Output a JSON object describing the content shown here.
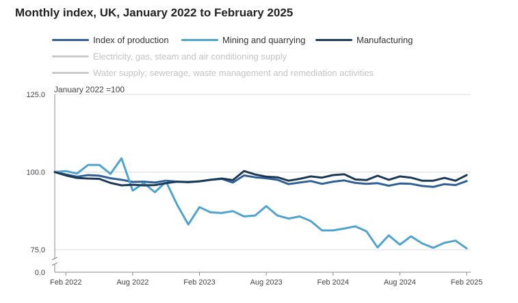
{
  "chart_data": {
    "type": "line",
    "title": "Monthly index, UK, January 2022 to February 2025",
    "ylabel": "January 2022 =100",
    "xlabel": "",
    "ylim": [
      0,
      125
    ],
    "y_ticks": [
      "0.0",
      "75.0",
      "100.0",
      "125.0"
    ],
    "y_tick_values": [
      0,
      75,
      100,
      125
    ],
    "axis_break": true,
    "x_ticks": [
      "Feb 2022",
      "Aug 2022",
      "Feb 2023",
      "Aug 2023",
      "Feb 2024",
      "Aug 2024",
      "Feb 2025"
    ],
    "x_tick_index": [
      1,
      7,
      13,
      19,
      25,
      31,
      37
    ],
    "x_start": "Jan 2022",
    "x_count": 38,
    "series": [
      {
        "name": "Index of production",
        "color": "#2e5f95",
        "active": true,
        "values": [
          100.0,
          99.2,
          98.5,
          99.0,
          98.8,
          98.0,
          97.5,
          96.8,
          96.9,
          96.6,
          97.2,
          96.9,
          96.7,
          97.0,
          97.5,
          97.8,
          96.6,
          98.9,
          98.3,
          98.0,
          97.5,
          96.1,
          96.6,
          97.1,
          96.2,
          96.9,
          97.3,
          96.5,
          96.2,
          96.4,
          95.6,
          96.3,
          96.2,
          95.5,
          95.2,
          96.1,
          95.8,
          97.1
        ]
      },
      {
        "name": "Mining and quarrying",
        "color": "#4fa3cf",
        "active": true,
        "values": [
          100.0,
          100.3,
          99.5,
          102.3,
          102.3,
          99.4,
          104.4,
          94.0,
          96.4,
          93.5,
          96.9,
          89.4,
          83.1,
          88.7,
          87.0,
          86.8,
          87.4,
          85.7,
          86.0,
          89.0,
          86.0,
          85.0,
          85.7,
          84.2,
          81.2,
          81.2,
          81.8,
          82.5,
          80.9,
          75.7,
          79.6,
          76.6,
          79.3,
          77.0,
          75.6,
          77.2,
          77.9,
          75.4
        ]
      },
      {
        "name": "Manufacturing",
        "color": "#1b3956",
        "active": true,
        "values": [
          100.0,
          98.9,
          98.1,
          97.9,
          97.8,
          96.5,
          95.7,
          95.9,
          95.7,
          95.8,
          96.4,
          96.9,
          96.8,
          97.0,
          97.5,
          97.9,
          97.4,
          100.3,
          99.2,
          98.5,
          98.3,
          97.2,
          97.8,
          98.6,
          98.2,
          99.0,
          99.3,
          97.6,
          97.4,
          98.8,
          97.5,
          98.6,
          98.2,
          97.2,
          97.2,
          98.1,
          97.2,
          99.0
        ]
      },
      {
        "name": "Electricity, gas, steam and air conditioning supply",
        "color": "#c9c9c9",
        "active": false,
        "values": []
      },
      {
        "name": "Water supply; sewerage, waste management and remediation activities",
        "color": "#c9c9c9",
        "active": false,
        "values": []
      }
    ]
  }
}
